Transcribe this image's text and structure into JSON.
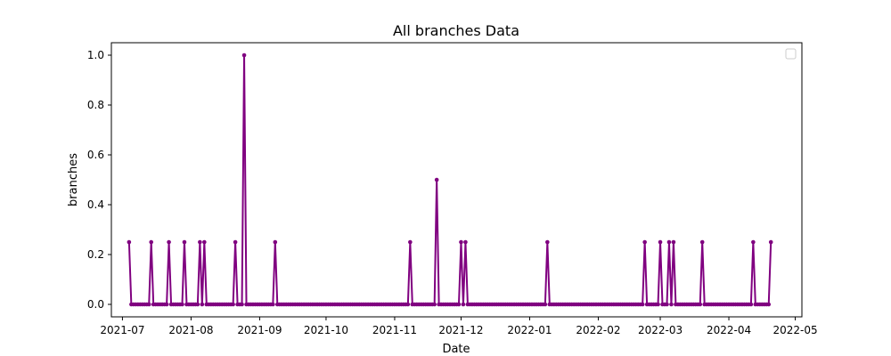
{
  "chart_data": {
    "type": "line",
    "title": "All branches Data",
    "xlabel": "Date",
    "ylabel": "branches",
    "xlim": [
      "2021-06-26",
      "2022-05-04"
    ],
    "ylim": [
      -0.05,
      1.05
    ],
    "grid": false,
    "legend": "top-right",
    "line_color": "#800080",
    "x_ticks": [
      "2021-07",
      "2021-08",
      "2021-09",
      "2021-10",
      "2021-11",
      "2021-12",
      "2022-01",
      "2022-02",
      "2022-03",
      "2022-04",
      "2022-05"
    ],
    "y_ticks": [
      "0.0",
      "0.2",
      "0.4",
      "0.6",
      "0.8",
      "1.0"
    ],
    "start_date": "2021-07-04",
    "end_date": "2022-04-20",
    "spikes": [
      {
        "date": "2021-07-04",
        "value": 0.25
      },
      {
        "date": "2021-07-14",
        "value": 0.25
      },
      {
        "date": "2021-07-22",
        "value": 0.25
      },
      {
        "date": "2021-07-29",
        "value": 0.25
      },
      {
        "date": "2021-08-05",
        "value": 0.25
      },
      {
        "date": "2021-08-07",
        "value": 0.25
      },
      {
        "date": "2021-08-21",
        "value": 0.25
      },
      {
        "date": "2021-08-25",
        "value": 1.0
      },
      {
        "date": "2021-09-08",
        "value": 0.25
      },
      {
        "date": "2021-11-08",
        "value": 0.25
      },
      {
        "date": "2021-11-20",
        "value": 0.5
      },
      {
        "date": "2021-12-01",
        "value": 0.25
      },
      {
        "date": "2021-12-03",
        "value": 0.25
      },
      {
        "date": "2022-01-09",
        "value": 0.25
      },
      {
        "date": "2022-02-22",
        "value": 0.25
      },
      {
        "date": "2022-03-01",
        "value": 0.25
      },
      {
        "date": "2022-03-05",
        "value": 0.25
      },
      {
        "date": "2022-03-07",
        "value": 0.25
      },
      {
        "date": "2022-03-20",
        "value": 0.25
      },
      {
        "date": "2022-04-12",
        "value": 0.25
      },
      {
        "date": "2022-04-20",
        "value": 0.25
      }
    ]
  }
}
